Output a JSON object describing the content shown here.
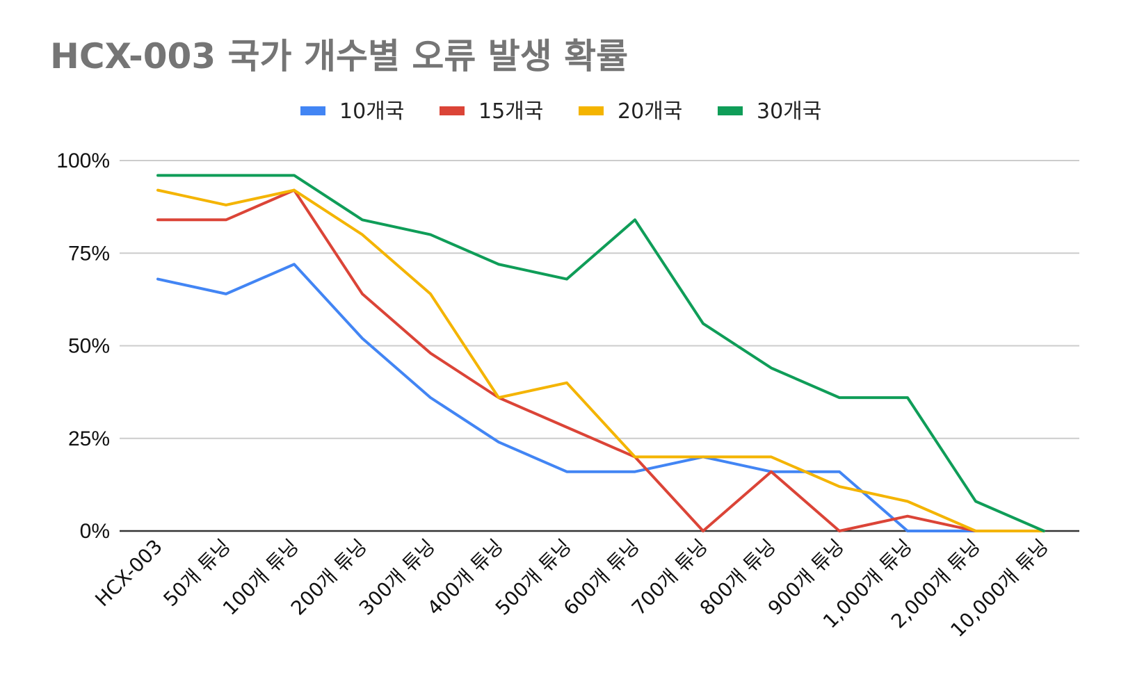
{
  "chart_data": {
    "type": "line",
    "title": "HCX-003 국가 개수별 오류 발생 확률",
    "xlabel": "",
    "ylabel": "",
    "categories": [
      "HCX-003",
      "50개 튜닝",
      "100개 튜닝",
      "200개 튜닝",
      "300개 튜닝",
      "400개 튜닝",
      "500개 튜닝",
      "600개 튜닝",
      "700개 튜닝",
      "800개 튜닝",
      "900개 튜닝",
      "1,000개 튜닝",
      "2,000개 튜닝",
      "10,000개 튜닝"
    ],
    "ylim": [
      0,
      100
    ],
    "yticks": [
      {
        "value": 0,
        "label": "0%"
      },
      {
        "value": 25,
        "label": "25%"
      },
      {
        "value": 50,
        "label": "50%"
      },
      {
        "value": 75,
        "label": "75%"
      },
      {
        "value": 100,
        "label": "100%"
      }
    ],
    "grid": true,
    "legend_position": "top",
    "series": [
      {
        "name": "10개국",
        "color": "#4285f4",
        "values": [
          68,
          64,
          72,
          52,
          36,
          24,
          16,
          16,
          20,
          16,
          16,
          0,
          0,
          0
        ]
      },
      {
        "name": "15개국",
        "color": "#db4437",
        "values": [
          84,
          84,
          92,
          64,
          48,
          36,
          28,
          20,
          0,
          16,
          0,
          4,
          0,
          0
        ]
      },
      {
        "name": "20개국",
        "color": "#f4b400",
        "values": [
          92,
          88,
          92,
          80,
          64,
          36,
          40,
          20,
          20,
          20,
          12,
          8,
          0,
          0
        ]
      },
      {
        "name": "30개국",
        "color": "#0f9d58",
        "values": [
          96,
          96,
          96,
          84,
          80,
          72,
          68,
          84,
          56,
          44,
          36,
          36,
          8,
          0
        ]
      }
    ]
  }
}
